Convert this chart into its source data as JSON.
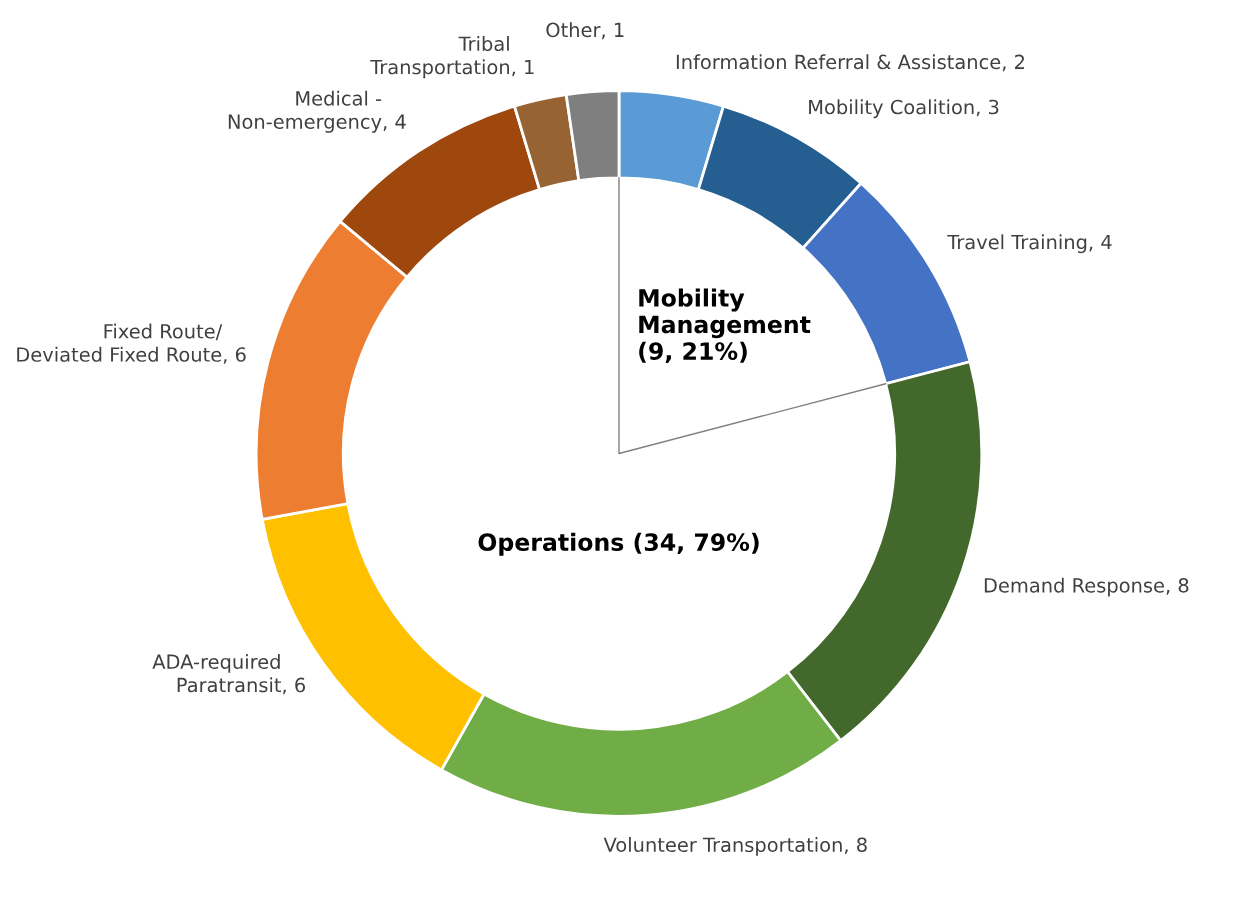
{
  "chart_data": {
    "type": "donut",
    "categories": [
      "Information Referral & Assistance",
      "Mobility Coalition",
      "Travel Training",
      "Demand Response",
      "Volunteer Transportation",
      "ADA-required Paratransit",
      "Fixed Route/ Deviated Fixed Route",
      "Medical - Non-emergency",
      "Tribal Transportation",
      "Other"
    ],
    "values": [
      2,
      3,
      4,
      8,
      8,
      6,
      6,
      4,
      1,
      1
    ],
    "colors": [
      "#5b9bd5",
      "#255e91",
      "#4472c4",
      "#43682b",
      "#70ad47",
      "#ffc000",
      "#ed7d31",
      "#9e480e",
      "#976332",
      "#7f7f7f"
    ],
    "value_labels": [
      ", 2",
      ", 3",
      ", 4",
      ", 8",
      ", 8",
      ", 6",
      ", 6",
      ", 4",
      ", 1",
      ", 1"
    ],
    "annotations": [
      "Mobility Management (9, 21%)",
      "Operations (34, 79%)"
    ]
  }
}
